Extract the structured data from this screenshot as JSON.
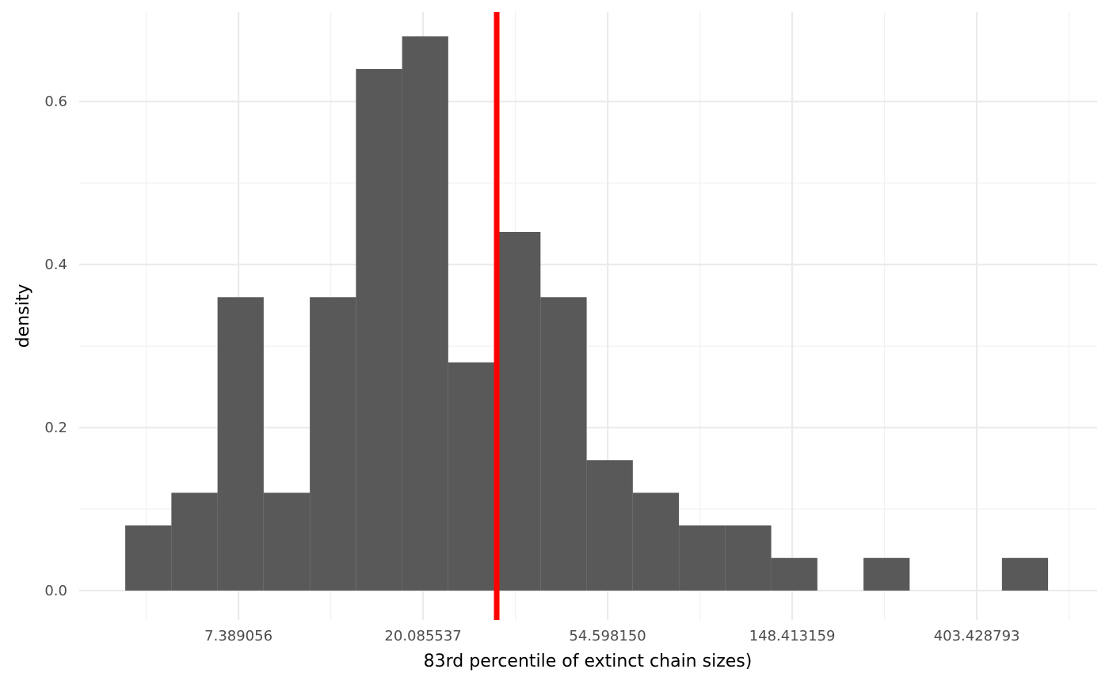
{
  "chart_data": {
    "type": "histogram",
    "xlabel": "83rd percentile of extinct chain sizes)",
    "ylabel": "density",
    "bins": [
      4,
      5.1361,
      6.5949,
      8.468,
      10.8731,
      13.9613,
      17.9266,
      23.0182,
      29.5559,
      37.9505,
      48.7294,
      62.5697,
      80.3411,
      103.1596,
      132.4596,
      170.0823,
      218.388,
      280.4157,
      360.0608,
      462.3266,
      593.6391
    ],
    "values": [
      0.08,
      0.12,
      0.36,
      0.12,
      0.36,
      0.64,
      0.68,
      0.28,
      0.44,
      0.36,
      0.16,
      0.12,
      0.08,
      0.08,
      0.04,
      0,
      0.04,
      0,
      0,
      0.04
    ],
    "color": "#595959",
    "xscale": "log",
    "xlim": [
      3.117,
      774.3
    ],
    "xticks": [
      7.389056,
      20.085537,
      {
        "value": 54.59815,
        "label": "54.598150"
      },
      148.413159,
      403.428793
    ],
    "xminorticks": [
      4.481689,
      12.182494,
      33.115452,
      90.017131,
      244.691932,
      665.141633
    ],
    "ylim": [
      -0.036,
      0.71
    ],
    "yticks": [
      {
        "value": 0,
        "label": "0.0"
      },
      0.2,
      0.4,
      0.6
    ],
    "yminorticks": [
      0.1,
      0.3,
      0.5
    ],
    "grid": true,
    "vline": {
      "x": 29.93,
      "color": "#ff0000"
    }
  }
}
